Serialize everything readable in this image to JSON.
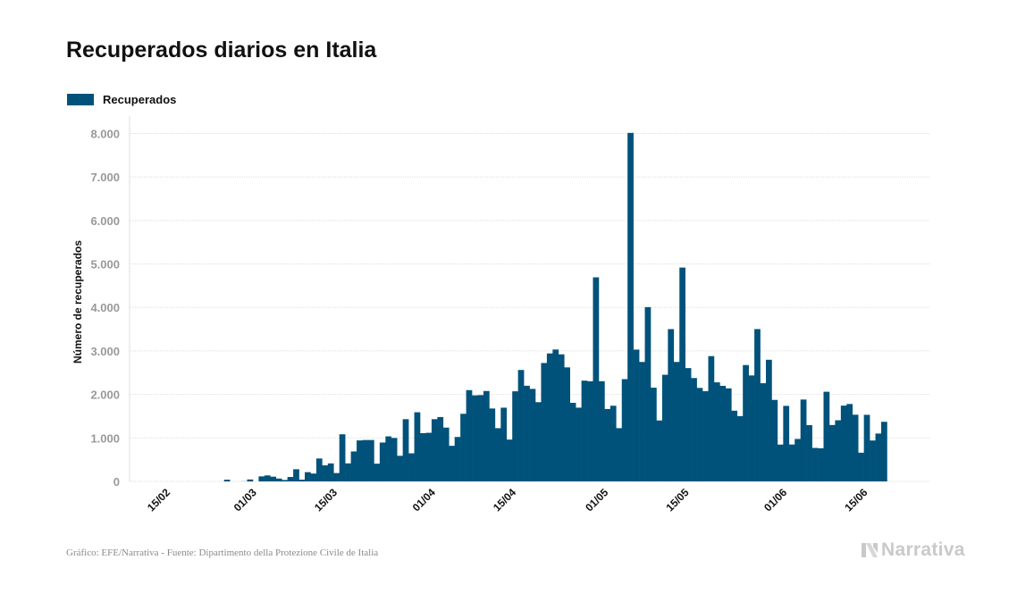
{
  "colors": {
    "bar": "#00527a",
    "grid": "#dddddd",
    "tick_label": "#999999",
    "axis_title": "#111111",
    "logo": "#c9c9c9"
  },
  "header": {
    "title": "Recuperados diarios en Italia"
  },
  "footer": {
    "source": "Gráfico: EFE/Narrativa - Fuente: Dipartimento della Protezione Civile de Italia",
    "logo_text": "Narrativa",
    "logo_icon": "narrativa-n-icon"
  },
  "chart_data": {
    "type": "bar",
    "title": "Recuperados diarios en Italia",
    "ylabel": "Número de recuperados",
    "xlabel": "",
    "legend": {
      "position": "top-left",
      "entries": [
        "Recuperados"
      ]
    },
    "grid": true,
    "ylim": [
      0,
      8400
    ],
    "yticks": [
      0,
      1000,
      2000,
      3000,
      4000,
      5000,
      6000,
      7000,
      8000
    ],
    "ytick_labels": [
      "0",
      "1.000",
      "2.000",
      "3.000",
      "4.000",
      "5.000",
      "6.000",
      "7.000",
      "8.000"
    ],
    "x_start": "2020-02-10",
    "xticks": [
      {
        "date": "2020-02-15",
        "label": "15/02"
      },
      {
        "date": "2020-03-01",
        "label": "01/03"
      },
      {
        "date": "2020-03-15",
        "label": "15/03"
      },
      {
        "date": "2020-04-01",
        "label": "01/04"
      },
      {
        "date": "2020-04-15",
        "label": "15/04"
      },
      {
        "date": "2020-05-01",
        "label": "01/05"
      },
      {
        "date": "2020-05-15",
        "label": "15/05"
      },
      {
        "date": "2020-06-01",
        "label": "01/06"
      },
      {
        "date": "2020-06-15",
        "label": "15/06"
      }
    ],
    "series": [
      {
        "name": "Recuperados",
        "values": [
          0,
          0,
          0,
          0,
          0,
          0,
          0,
          0,
          0,
          0,
          0,
          0,
          0,
          0,
          0,
          0,
          40,
          0,
          0,
          3,
          45,
          0,
          116,
          138,
          109,
          66,
          33,
          102,
          280,
          41,
          213,
          181,
          527,
          369,
          414,
          192,
          1084,
          415,
          689,
          943,
          952,
          952,
          408,
          894,
          1036,
          999,
          589,
          1431,
          646,
          1590,
          1109,
          1118,
          1431,
          1480,
          1238,
          819,
          1022,
          1555,
          2099,
          1979,
          1985,
          2079,
          1677,
          1224,
          1695,
          962,
          2072,
          2563,
          2200,
          2128,
          1822,
          2723,
          2943,
          3033,
          2922,
          2622,
          1808,
          1696,
          2317,
          2304,
          4693,
          2304,
          1665,
          1740,
          1225,
          2352,
          8014,
          3031,
          2747,
          4008,
          2155,
          1401,
          2452,
          3502,
          2747,
          4917,
          2606,
          2377,
          2150,
          2075,
          2881,
          2278,
          2198,
          2140,
          1626,
          1502,
          2676,
          2437,
          3503,
          2258,
          2797,
          1874,
          847,
          1737,
          849,
          976,
          1883,
          1295,
          770,
          763,
          2062,
          1297,
          1406,
          1743,
          1780,
          1534,
          660,
          1531,
          941,
          1101,
          1371
        ]
      }
    ]
  }
}
